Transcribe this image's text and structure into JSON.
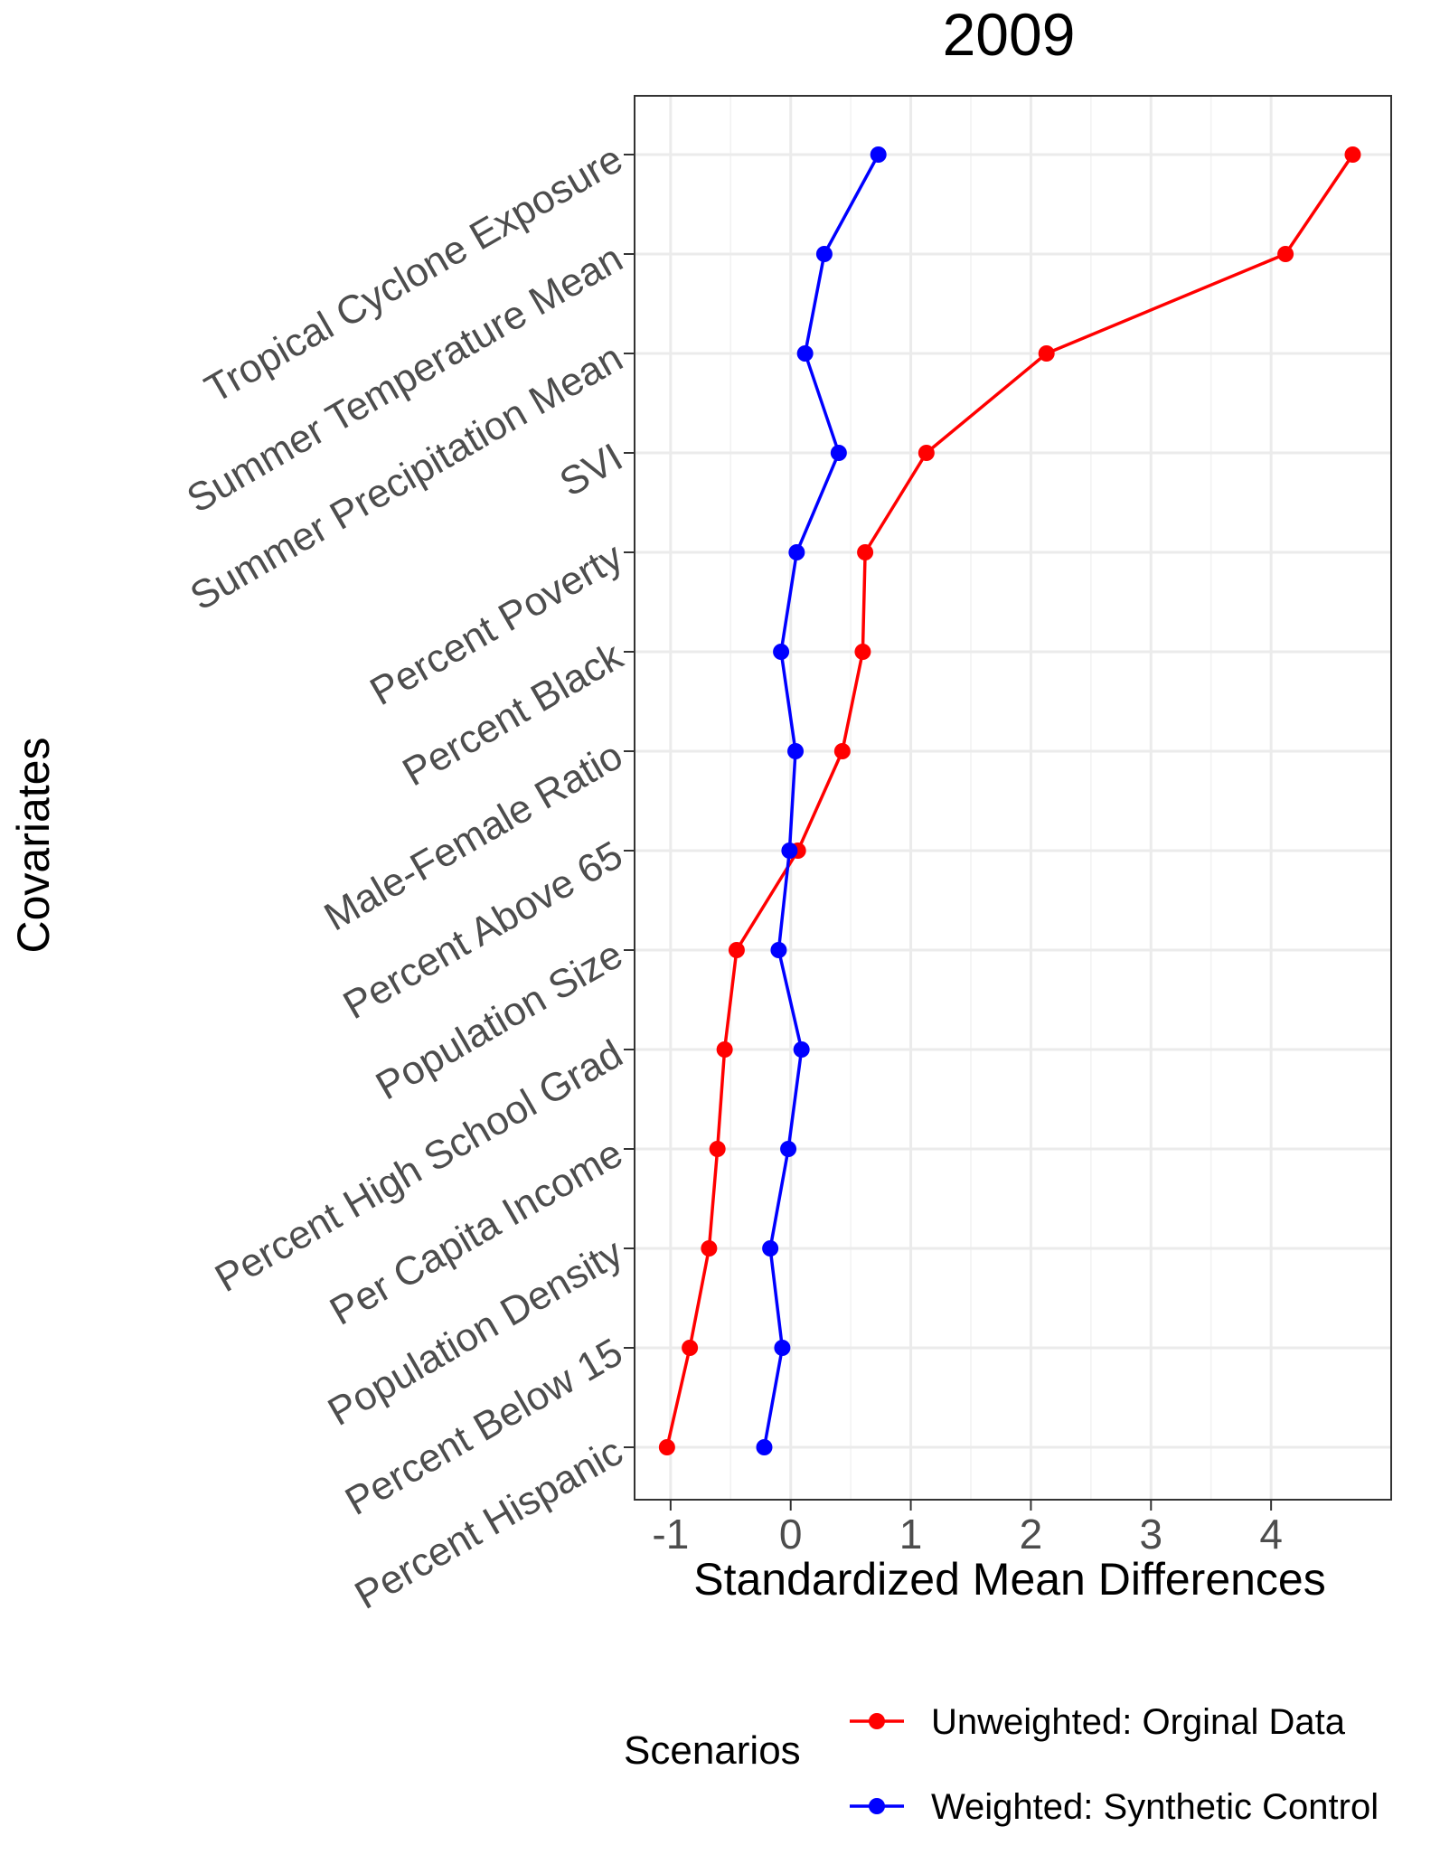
{
  "chart_data": {
    "type": "line",
    "title": "2009",
    "xlabel": "Standardized Mean Differences",
    "ylabel": "Covariates",
    "xlim": [
      -1.3,
      5.0
    ],
    "x_ticks": [
      {
        "value": -1,
        "label": "-1"
      },
      {
        "value": 0,
        "label": "0"
      },
      {
        "value": 1,
        "label": "1"
      },
      {
        "value": 2,
        "label": "2"
      },
      {
        "value": 3,
        "label": "3"
      },
      {
        "value": 4,
        "label": "4"
      }
    ],
    "grid": true,
    "categories": [
      "Tropical Cyclone Exposure",
      "Summer Temperature Mean",
      "Summer Precipitation Mean",
      "SVI",
      "Percent Poverty",
      "Percent Black",
      "Male-Female Ratio",
      "Percent Above 65",
      "Population Size",
      "Percent High School Grad",
      "Per Capita Income",
      "Population Density",
      "Percent Below 15",
      "Percent Hispanic"
    ],
    "series": [
      {
        "name": "Unweighted: Orginal Data",
        "color": "#ff0000",
        "values": [
          4.68,
          4.12,
          2.13,
          1.13,
          0.62,
          0.6,
          0.43,
          0.06,
          -0.45,
          -0.55,
          -0.61,
          -0.68,
          -0.84,
          -1.03
        ]
      },
      {
        "name": "Weighted: Synthetic Control",
        "color": "#0000ff",
        "values": [
          0.73,
          0.28,
          0.12,
          0.4,
          0.05,
          -0.08,
          0.04,
          -0.01,
          -0.1,
          0.09,
          -0.02,
          -0.17,
          -0.07,
          -0.22
        ]
      }
    ],
    "legend": {
      "title": "Scenarios",
      "position": "bottom"
    }
  }
}
